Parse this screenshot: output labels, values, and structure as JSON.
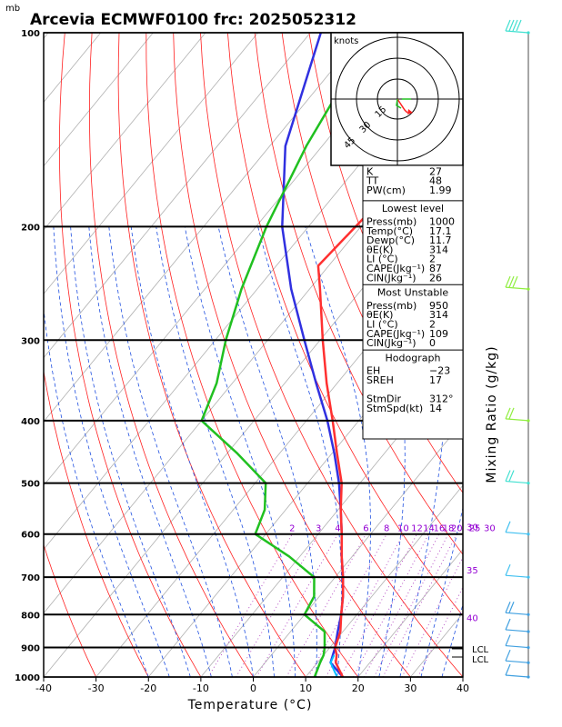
{
  "chart_data": {
    "type": "skew-t log-p sounding",
    "title": "Arcevia ECMWF0100 frc: 2025052312",
    "y_unit": "mb",
    "xlabel": "Temperature (°C)",
    "right_axis_label": "Mixing Ratio (g/kg)",
    "xlim": [
      -40,
      40
    ],
    "ylim_mb": [
      1000,
      100
    ],
    "x_ticks": [
      "-40",
      "-30",
      "-20",
      "-10",
      "0",
      "10",
      "20",
      "30",
      "40"
    ],
    "p_ticks": [
      100,
      200,
      300,
      400,
      500,
      600,
      700,
      800,
      900,
      1000
    ],
    "mixing_ratio_labels": [
      "2",
      "3",
      "4",
      "6",
      "8",
      "10",
      "12",
      "14",
      "16",
      "18",
      "20",
      "25",
      "30"
    ],
    "purple_labels": [
      {
        "text": "30",
        "p": 600
      },
      {
        "text": "35",
        "p": 700
      },
      {
        "text": "40",
        "p": 830
      }
    ],
    "lcl_labels": [
      "LCL",
      "LCL"
    ],
    "temperature": {
      "color": "#ff3030",
      "p": [
        1000,
        950,
        925,
        900,
        850,
        800,
        750,
        700,
        650,
        600,
        550,
        500,
        450,
        400,
        350,
        300,
        250,
        230,
        200,
        150,
        100
      ],
      "t": [
        17.1,
        13.5,
        12.5,
        11.0,
        9.5,
        7.0,
        4.5,
        1.5,
        -2.0,
        -5.5,
        -9.5,
        -13.5,
        -19.0,
        -25.0,
        -32.0,
        -39.5,
        -48.0,
        -52.0,
        -51.0,
        -49.0,
        -48.0
      ]
    },
    "dewpoint": {
      "color": "#20c020",
      "p": [
        1000,
        950,
        925,
        900,
        850,
        800,
        750,
        700,
        650,
        600,
        550,
        500,
        450,
        400,
        350,
        300,
        250,
        200,
        150,
        100
      ],
      "t": [
        11.7,
        10.5,
        10.0,
        9.0,
        6.5,
        0.0,
        -1.0,
        -4.0,
        -12.0,
        -22.0,
        -24.0,
        -28.0,
        -38.0,
        -50.0,
        -53.0,
        -58.0,
        -63.0,
        -68.0,
        -73.0,
        -78.0
      ]
    },
    "parcel": {
      "color": "#3030e0",
      "p": [
        1000,
        950,
        900,
        850,
        800,
        750,
        700,
        650,
        600,
        550,
        500,
        450,
        400,
        350,
        300,
        250,
        200,
        150,
        100
      ],
      "t": [
        17.1,
        12.5,
        11.0,
        9.0,
        7.0,
        4.5,
        1.5,
        -2.0,
        -5.5,
        -9.5,
        -14.0,
        -19.5,
        -26.0,
        -34.0,
        -43.0,
        -53.5,
        -65.0,
        -77.0,
        -88.0
      ]
    },
    "virtual_temperature_color": "#00bfff",
    "hodograph_unit": "knots",
    "hodograph_ring_labels": [
      "15",
      "30",
      "45"
    ],
    "indices": {
      "rows1": [
        [
          "K",
          "27"
        ],
        [
          "TT",
          "48"
        ],
        [
          "PW(cm)",
          "1.99"
        ]
      ],
      "lowest_level": {
        "header": "Lowest level",
        "rows": [
          [
            "Press(mb)",
            "1000"
          ],
          [
            "Temp(°C)",
            "17.1"
          ],
          [
            "Dewp(°C)",
            "11.7"
          ],
          [
            "θE(K)",
            "314"
          ],
          [
            "LI (°C)",
            "2"
          ],
          [
            "CAPE(Jkg⁻¹)",
            "87"
          ],
          [
            "CIN(Jkg⁻¹)",
            "26"
          ]
        ]
      },
      "most_unstable": {
        "header": "Most Unstable",
        "rows": [
          [
            "Press(mb)",
            "950"
          ],
          [
            "θE(K)",
            "314"
          ],
          [
            "LI (°C)",
            "2"
          ],
          [
            "CAPE(Jkg⁻¹)",
            "109"
          ],
          [
            "CIN(Jkg⁻¹)",
            "0"
          ]
        ]
      },
      "hodograph": {
        "header": "Hodograph",
        "rows": [
          [
            "EH",
            "−23"
          ],
          [
            "SREH",
            "17"
          ],
          [
            "",
            ""
          ],
          [
            "StmDir",
            "312°"
          ],
          [
            "StmSpd(kt)",
            "14"
          ]
        ]
      }
    }
  }
}
